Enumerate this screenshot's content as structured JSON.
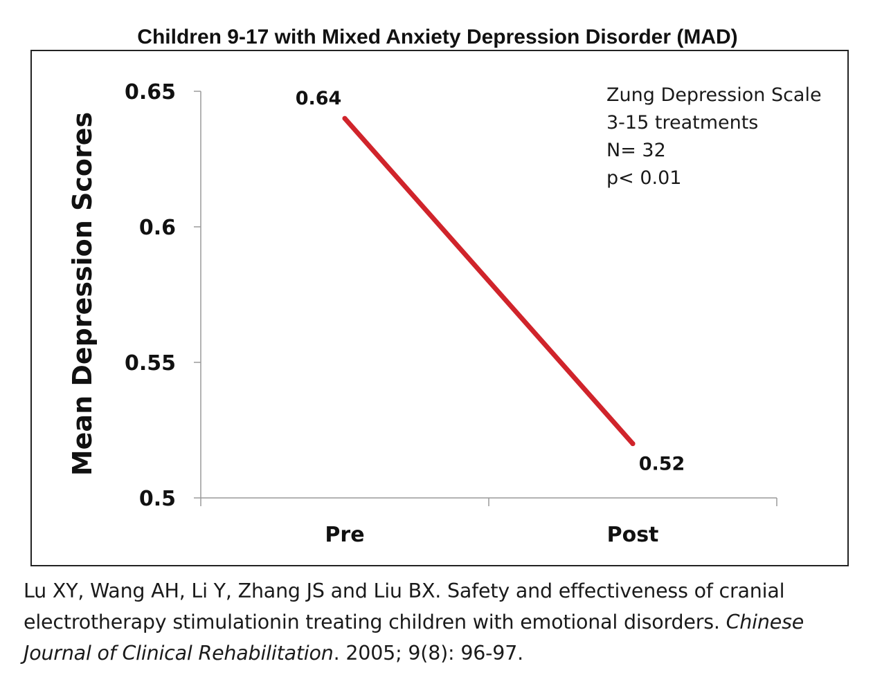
{
  "chart_data": {
    "type": "line",
    "title": "Children 9-17 with Mixed Anxiety Depression Disorder (MAD)",
    "ylabel": "Mean Depression Scores",
    "xlabel": "",
    "categories": [
      "Pre",
      "Post"
    ],
    "series": [
      {
        "values": [
          0.64,
          0.52
        ],
        "color": "#d0242b"
      }
    ],
    "data_labels": [
      "0.64",
      "0.52"
    ],
    "ylim": [
      0.5,
      0.65
    ],
    "yticks": [
      0.5,
      0.55,
      0.6,
      0.65
    ],
    "ytick_labels": [
      "0.5",
      "0.55",
      "0.6",
      "0.65"
    ],
    "grid": false,
    "annotation": [
      "Zung Depression Scale",
      "3-15 treatments",
      "N= 32",
      "p< 0.01"
    ]
  },
  "citation": {
    "authors_text": "Lu XY, Wang AH, Li Y, Zhang JS and Liu BX. Safety and effectiveness of cranial electrotherapy stimulationin treating children with emotional disorders. ",
    "journal": "Chinese Journal of Clinical Rehabilitation",
    "details": ". 2005; 9(8): 96-97."
  }
}
